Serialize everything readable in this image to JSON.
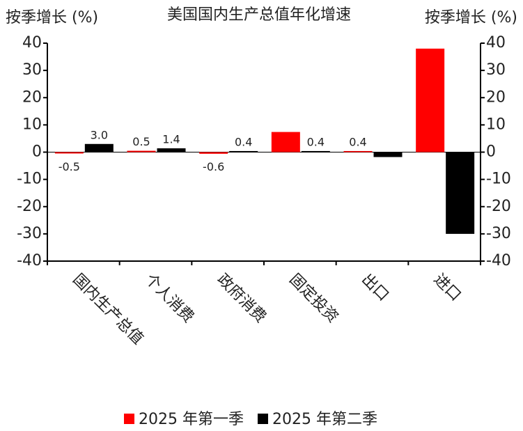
{
  "chart_data": {
    "type": "bar",
    "title": "美国国内生产总值年化增速",
    "y_label": "按季增长 (%)",
    "y2_label": "按季增长 (%)",
    "categories": [
      "国内生产总值",
      "个人消费",
      "政府消费",
      "固定投资",
      "出口",
      "进口"
    ],
    "series": [
      {
        "name": "2025 年第一季",
        "color": "#ff0000",
        "values": [
          -0.5,
          0.5,
          -0.6,
          7.4,
          0.4,
          38
        ],
        "value_labels": [
          "-0.5",
          "0.5",
          "-0.6",
          null,
          "0.4",
          null
        ]
      },
      {
        "name": "2025 年第二季",
        "color": "#000000",
        "values": [
          3,
          1.4,
          0.4,
          0.4,
          -1.8,
          -30
        ],
        "value_labels": [
          "3.0",
          "1.4",
          "0.4",
          "0.4",
          null,
          null
        ]
      }
    ],
    "ylim": [
      -40,
      40
    ],
    "yticks": [
      -40,
      -30,
      -20,
      -10,
      0,
      10,
      20,
      30,
      40
    ],
    "y2lim": [
      -40,
      40
    ],
    "y2ticks": [
      -40,
      -30,
      -20,
      -10,
      0,
      10,
      20,
      30,
      40
    ],
    "grid": false,
    "legend": "bottom"
  }
}
